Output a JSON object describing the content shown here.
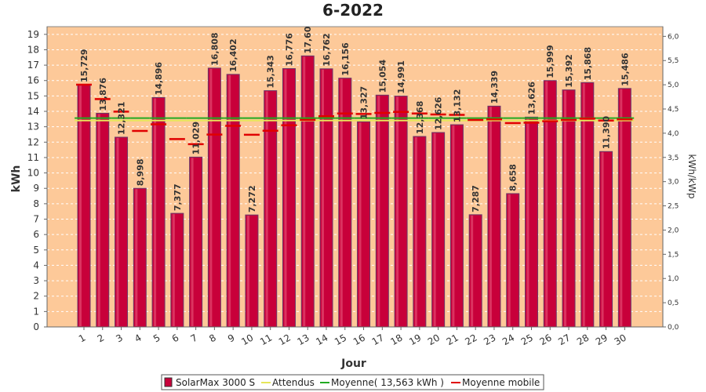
{
  "chart_data": {
    "type": "bar",
    "title": "6-2022",
    "xlabel": "Jour",
    "ylabel": "kWh",
    "ylabel_right": "kWh/kWp",
    "ylim": [
      0,
      19.5
    ],
    "ylim_right": [
      0,
      6.2
    ],
    "yticks": [
      "0",
      "1",
      "2",
      "3",
      "4",
      "5",
      "6",
      "7",
      "8",
      "9",
      "10",
      "11",
      "12",
      "13",
      "14",
      "15",
      "16",
      "17",
      "18",
      "19"
    ],
    "yticks_right": [
      "0,0",
      "0,5",
      "1,0",
      "1,5",
      "2,0",
      "2,5",
      "3,0",
      "3,5",
      "4,0",
      "4,5",
      "5,0",
      "5,5",
      "6,0"
    ],
    "categories": [
      "1",
      "2",
      "3",
      "4",
      "5",
      "6",
      "7",
      "8",
      "9",
      "10",
      "11",
      "12",
      "13",
      "14",
      "15",
      "16",
      "17",
      "18",
      "19",
      "20",
      "21",
      "22",
      "23",
      "24",
      "25",
      "26",
      "27",
      "28",
      "29",
      "30"
    ],
    "series": [
      {
        "name": "SolarMax 3000 S",
        "color": "#c8003a",
        "values": [
          15.729,
          13.876,
          12.321,
          8.998,
          14.896,
          7.377,
          11.029,
          16.808,
          16.402,
          7.272,
          15.343,
          16.776,
          17.6,
          16.762,
          16.156,
          13.327,
          15.054,
          14.991,
          12.368,
          12.626,
          13.132,
          7.287,
          14.339,
          8.658,
          13.626,
          15.999,
          15.392,
          15.868,
          11.39,
          15.486
        ],
        "labels": [
          "15,729",
          "13,876",
          "12,321",
          "8,998",
          "14,896",
          "7,377",
          "11,029",
          "16,808",
          "16,402",
          "7,272",
          "15,343",
          "16,776",
          "17,60",
          "16,762",
          "16,156",
          "13,327",
          "15,054",
          "14,991",
          "12,368",
          "12,626",
          "13,132",
          "7,287",
          "14,339",
          "8,658",
          "13,626",
          "15,999",
          "15,392",
          "15,868",
          "11,390",
          "15,486"
        ]
      },
      {
        "name": "Attendus",
        "color": "#e6e65a",
        "values": [
          13.4,
          13.4,
          13.4,
          13.4,
          13.4,
          13.4,
          13.4,
          13.4,
          13.4,
          13.4,
          13.4,
          13.4,
          13.4,
          13.4,
          13.4,
          13.4,
          13.4,
          13.4,
          13.4,
          13.4,
          13.4,
          13.4,
          13.4,
          13.4,
          13.4,
          13.4,
          13.4,
          13.4,
          13.4,
          13.4
        ]
      },
      {
        "name": "Moyenne( 13,563 kWh )",
        "color": "#22aa22",
        "values": [
          13.563,
          13.563,
          13.563,
          13.563,
          13.563,
          13.563,
          13.563,
          13.563,
          13.563,
          13.563,
          13.563,
          13.563,
          13.563,
          13.563,
          13.563,
          13.563,
          13.563,
          13.563,
          13.563,
          13.563,
          13.563,
          13.563,
          13.563,
          13.563,
          13.563,
          13.563,
          13.563,
          13.563,
          13.563,
          13.563
        ]
      },
      {
        "name": "Moyenne mobile",
        "color": "#e00000",
        "values": [
          15.73,
          14.8,
          13.98,
          12.73,
          13.16,
          12.2,
          11.87,
          12.49,
          13.06,
          12.48,
          12.74,
          13.1,
          13.45,
          13.68,
          13.86,
          13.83,
          13.9,
          13.96,
          13.86,
          13.8,
          13.77,
          13.44,
          13.48,
          13.24,
          13.26,
          13.36,
          13.44,
          13.53,
          13.4,
          13.48
        ]
      }
    ],
    "legend_position": "bottom",
    "grid": true,
    "colors": {
      "plot_background": "#fdc999",
      "grid": "#ffffff",
      "bar": "#c8003a",
      "bar_edge": "#6a3a6a"
    }
  }
}
